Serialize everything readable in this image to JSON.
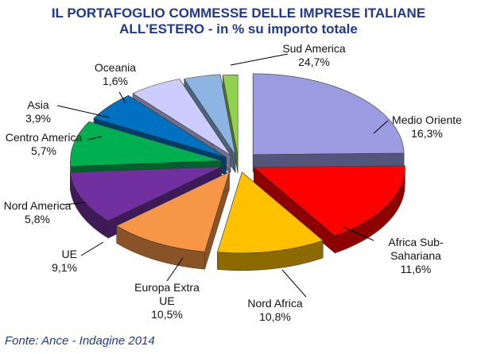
{
  "chart_data": {
    "type": "pie",
    "title_line1": "IL PORTAFOGLIO COMMESSE DELLE IMPRESE ITALIANE",
    "title_line2": "ALL'ESTERO - in % su importo totale",
    "slices": [
      {
        "label": "Sud America",
        "value": 24.7,
        "value_label": "24,7%",
        "color": "#9a9be0"
      },
      {
        "label": "Medio Oriente",
        "value": 16.3,
        "value_label": "16,3%",
        "color": "#ff0000"
      },
      {
        "label": "Africa Sub-Sahariana",
        "label_lines": [
          "Africa Sub-",
          "Sahariana"
        ],
        "value": 11.6,
        "value_label": "11,6%",
        "color": "#ffc000"
      },
      {
        "label": "Nord Africa",
        "value": 10.8,
        "value_label": "10,8%",
        "color": "#f79646"
      },
      {
        "label": "Europa Extra UE",
        "label_lines": [
          "Europa Extra",
          "UE"
        ],
        "value": 10.5,
        "value_label": "10,5%",
        "color": "#7030a0"
      },
      {
        "label": "UE",
        "value": 9.1,
        "value_label": "9,1%",
        "color": "#00b050"
      },
      {
        "label": "Nord America",
        "value": 5.8,
        "value_label": "5,8%",
        "color": "#0070c0"
      },
      {
        "label": "Centro America",
        "value": 5.7,
        "value_label": "5,7%",
        "color": "#ccccff"
      },
      {
        "label": "Asia",
        "value": 3.9,
        "value_label": "3,9%",
        "color": "#8db4e2"
      },
      {
        "label": "Oceania",
        "value": 1.6,
        "value_label": "1,6%",
        "color": "#92d050"
      }
    ],
    "legend": "none",
    "exploded": true,
    "style": "3d"
  },
  "source": "Fonte: Ance - Indagine 2014"
}
